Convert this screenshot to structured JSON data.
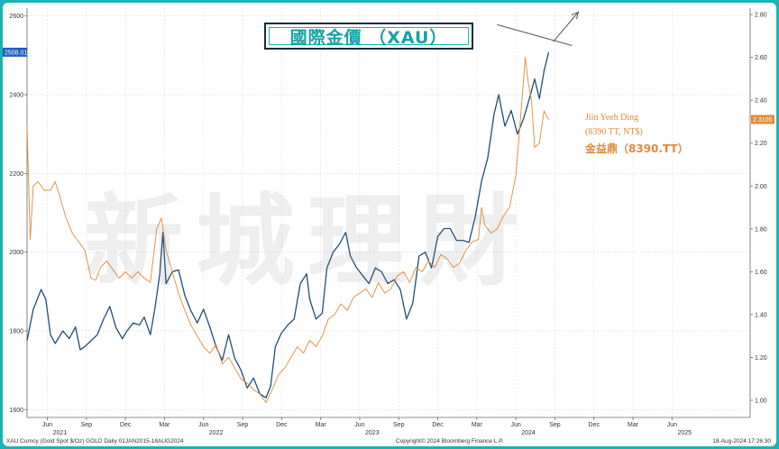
{
  "title": "國際金價 （XAU）",
  "watermark": "新城理財",
  "annotation": {
    "name_en": "Jiin Yeeh Ding",
    "ticker_en": "(8390 TT, NT$)",
    "name_zh": "金益鼎（8390.TT）"
  },
  "footer": {
    "left": "XAU Curncy (Gold Spot  $/Oz) GOLD  Daily 01JAN2015-18AUG2024",
    "center": "Copyright© 2024 Bloomberg Finance L.P.",
    "right": "18-Aug-2024 17:26:30"
  },
  "colors": {
    "gold_series": "#1f4e79",
    "stock_series": "#e08a3a",
    "frame": "#1bb3b3",
    "title": "#17a2a6"
  },
  "chart_data": {
    "type": "line",
    "left_axis": {
      "ylim": [
        1580,
        2620
      ],
      "ticks": [
        "1600",
        "1800",
        "2000",
        "2200",
        "2400",
        "2600"
      ],
      "last_value_label": "2508.01"
    },
    "right_axis": {
      "ylim": [
        0.92,
        2.83
      ],
      "ticks": [
        "1.00",
        "1.20",
        "1.40",
        "1.60",
        "1.80",
        "2.00",
        "2.20",
        "2.40",
        "2.60",
        "2.80"
      ],
      "last_value_label": "2.3105"
    },
    "x_axis": {
      "xlim": [
        2021.29,
        2025.92
      ],
      "months": [
        {
          "label": "Jun",
          "t": 2021.42
        },
        {
          "label": "Sep",
          "t": 2021.67
        },
        {
          "label": "Dec",
          "t": 2021.92
        },
        {
          "label": "Mar",
          "t": 2022.17
        },
        {
          "label": "Jun",
          "t": 2022.42
        },
        {
          "label": "Sep",
          "t": 2022.67
        },
        {
          "label": "Dec",
          "t": 2022.92
        },
        {
          "label": "Mar",
          "t": 2023.17
        },
        {
          "label": "Jun",
          "t": 2023.42
        },
        {
          "label": "Sep",
          "t": 2023.67
        },
        {
          "label": "Dec",
          "t": 2023.92
        },
        {
          "label": "Mar",
          "t": 2024.17
        },
        {
          "label": "Jun",
          "t": 2024.42
        },
        {
          "label": "Sep",
          "t": 2024.67
        },
        {
          "label": "Dec",
          "t": 2024.92
        },
        {
          "label": "Mar",
          "t": 2025.17
        },
        {
          "label": "Jun",
          "t": 2025.42
        }
      ],
      "years": [
        {
          "label": "2021",
          "t": 2021.5
        },
        {
          "label": "2022",
          "t": 2022.5
        },
        {
          "label": "2023",
          "t": 2023.5
        },
        {
          "label": "2024",
          "t": 2024.5
        },
        {
          "label": "2025",
          "t": 2025.5
        }
      ]
    },
    "series": [
      {
        "axis": "left",
        "points": [
          [
            2021.29,
            1775
          ],
          [
            2021.33,
            1855
          ],
          [
            2021.38,
            1905
          ],
          [
            2021.41,
            1880
          ],
          [
            2021.44,
            1790
          ],
          [
            2021.47,
            1768
          ],
          [
            2021.52,
            1800
          ],
          [
            2021.56,
            1780
          ],
          [
            2021.6,
            1810
          ],
          [
            2021.63,
            1752
          ],
          [
            2021.66,
            1760
          ],
          [
            2021.7,
            1775
          ],
          [
            2021.74,
            1790
          ],
          [
            2021.78,
            1830
          ],
          [
            2021.82,
            1862
          ],
          [
            2021.86,
            1808
          ],
          [
            2021.9,
            1780
          ],
          [
            2021.93,
            1800
          ],
          [
            2021.97,
            1820
          ],
          [
            2022.01,
            1815
          ],
          [
            2022.04,
            1835
          ],
          [
            2022.08,
            1790
          ],
          [
            2022.11,
            1860
          ],
          [
            2022.14,
            1945
          ],
          [
            2022.16,
            2050
          ],
          [
            2022.18,
            1920
          ],
          [
            2022.22,
            1950
          ],
          [
            2022.26,
            1955
          ],
          [
            2022.3,
            1890
          ],
          [
            2022.34,
            1850
          ],
          [
            2022.38,
            1820
          ],
          [
            2022.42,
            1855
          ],
          [
            2022.46,
            1810
          ],
          [
            2022.5,
            1760
          ],
          [
            2022.54,
            1725
          ],
          [
            2022.58,
            1790
          ],
          [
            2022.62,
            1730
          ],
          [
            2022.66,
            1700
          ],
          [
            2022.7,
            1655
          ],
          [
            2022.74,
            1680
          ],
          [
            2022.78,
            1640
          ],
          [
            2022.82,
            1630
          ],
          [
            2022.85,
            1660
          ],
          [
            2022.88,
            1760
          ],
          [
            2022.92,
            1795
          ],
          [
            2022.96,
            1815
          ],
          [
            2023.0,
            1830
          ],
          [
            2023.04,
            1920
          ],
          [
            2023.08,
            1945
          ],
          [
            2023.1,
            1880
          ],
          [
            2023.14,
            1830
          ],
          [
            2023.18,
            1845
          ],
          [
            2023.21,
            1960
          ],
          [
            2023.25,
            2000
          ],
          [
            2023.29,
            2020
          ],
          [
            2023.33,
            2050
          ],
          [
            2023.36,
            1990
          ],
          [
            2023.4,
            1960
          ],
          [
            2023.44,
            1940
          ],
          [
            2023.48,
            1920
          ],
          [
            2023.52,
            1960
          ],
          [
            2023.56,
            1950
          ],
          [
            2023.6,
            1920
          ],
          [
            2023.64,
            1930
          ],
          [
            2023.68,
            1905
          ],
          [
            2023.72,
            1830
          ],
          [
            2023.76,
            1870
          ],
          [
            2023.8,
            1990
          ],
          [
            2023.84,
            2000
          ],
          [
            2023.88,
            1960
          ],
          [
            2023.92,
            2040
          ],
          [
            2023.96,
            2060
          ],
          [
            2024.0,
            2060
          ],
          [
            2024.04,
            2030
          ],
          [
            2024.08,
            2030
          ],
          [
            2024.12,
            2025
          ],
          [
            2024.16,
            2090
          ],
          [
            2024.2,
            2180
          ],
          [
            2024.24,
            2240
          ],
          [
            2024.28,
            2350
          ],
          [
            2024.31,
            2400
          ],
          [
            2024.35,
            2320
          ],
          [
            2024.39,
            2360
          ],
          [
            2024.43,
            2300
          ],
          [
            2024.47,
            2340
          ],
          [
            2024.51,
            2395
          ],
          [
            2024.54,
            2440
          ],
          [
            2024.57,
            2390
          ],
          [
            2024.6,
            2460
          ],
          [
            2024.63,
            2508
          ]
        ]
      },
      {
        "axis": "right",
        "points": [
          [
            2021.29,
            2.28
          ],
          [
            2021.31,
            1.75
          ],
          [
            2021.33,
            2.0
          ],
          [
            2021.36,
            2.02
          ],
          [
            2021.4,
            1.98
          ],
          [
            2021.44,
            1.98
          ],
          [
            2021.47,
            2.02
          ],
          [
            2021.5,
            1.95
          ],
          [
            2021.54,
            1.85
          ],
          [
            2021.58,
            1.78
          ],
          [
            2021.62,
            1.74
          ],
          [
            2021.66,
            1.7
          ],
          [
            2021.7,
            1.57
          ],
          [
            2021.73,
            1.56
          ],
          [
            2021.76,
            1.62
          ],
          [
            2021.8,
            1.65
          ],
          [
            2021.84,
            1.61
          ],
          [
            2021.88,
            1.57
          ],
          [
            2021.92,
            1.6
          ],
          [
            2021.96,
            1.57
          ],
          [
            2022.0,
            1.6
          ],
          [
            2022.04,
            1.57
          ],
          [
            2022.08,
            1.55
          ],
          [
            2022.12,
            1.8
          ],
          [
            2022.15,
            1.85
          ],
          [
            2022.18,
            1.7
          ],
          [
            2022.22,
            1.6
          ],
          [
            2022.26,
            1.5
          ],
          [
            2022.3,
            1.42
          ],
          [
            2022.34,
            1.35
          ],
          [
            2022.38,
            1.3
          ],
          [
            2022.42,
            1.25
          ],
          [
            2022.46,
            1.22
          ],
          [
            2022.5,
            1.26
          ],
          [
            2022.54,
            1.17
          ],
          [
            2022.58,
            1.2
          ],
          [
            2022.62,
            1.15
          ],
          [
            2022.66,
            1.1
          ],
          [
            2022.7,
            1.08
          ],
          [
            2022.74,
            1.05
          ],
          [
            2022.78,
            1.03
          ],
          [
            2022.82,
            0.99
          ],
          [
            2022.86,
            1.05
          ],
          [
            2022.9,
            1.12
          ],
          [
            2022.94,
            1.15
          ],
          [
            2022.98,
            1.2
          ],
          [
            2023.02,
            1.25
          ],
          [
            2023.06,
            1.22
          ],
          [
            2023.1,
            1.28
          ],
          [
            2023.14,
            1.25
          ],
          [
            2023.18,
            1.3
          ],
          [
            2023.22,
            1.38
          ],
          [
            2023.26,
            1.4
          ],
          [
            2023.3,
            1.45
          ],
          [
            2023.34,
            1.42
          ],
          [
            2023.38,
            1.48
          ],
          [
            2023.42,
            1.5
          ],
          [
            2023.46,
            1.52
          ],
          [
            2023.5,
            1.48
          ],
          [
            2023.54,
            1.55
          ],
          [
            2023.58,
            1.5
          ],
          [
            2023.62,
            1.52
          ],
          [
            2023.66,
            1.58
          ],
          [
            2023.7,
            1.6
          ],
          [
            2023.74,
            1.55
          ],
          [
            2023.78,
            1.62
          ],
          [
            2023.82,
            1.6
          ],
          [
            2023.86,
            1.65
          ],
          [
            2023.9,
            1.62
          ],
          [
            2023.94,
            1.68
          ],
          [
            2023.98,
            1.66
          ],
          [
            2024.02,
            1.62
          ],
          [
            2024.06,
            1.64
          ],
          [
            2024.1,
            1.7
          ],
          [
            2024.14,
            1.74
          ],
          [
            2024.18,
            1.75
          ],
          [
            2024.2,
            1.9
          ],
          [
            2024.22,
            1.82
          ],
          [
            2024.26,
            1.78
          ],
          [
            2024.3,
            1.8
          ],
          [
            2024.34,
            1.86
          ],
          [
            2024.38,
            1.9
          ],
          [
            2024.42,
            2.05
          ],
          [
            2024.45,
            2.32
          ],
          [
            2024.48,
            2.6
          ],
          [
            2024.5,
            2.48
          ],
          [
            2024.52,
            2.4
          ],
          [
            2024.54,
            2.18
          ],
          [
            2024.57,
            2.2
          ],
          [
            2024.6,
            2.35
          ],
          [
            2024.63,
            2.31
          ]
        ]
      }
    ],
    "annotations": {
      "trendline": [
        [
          2024.3,
          2578
        ],
        [
          2024.78,
          2525
        ]
      ],
      "arrow": [
        [
          2024.66,
          2535
        ],
        [
          2024.82,
          2610
        ]
      ]
    }
  }
}
